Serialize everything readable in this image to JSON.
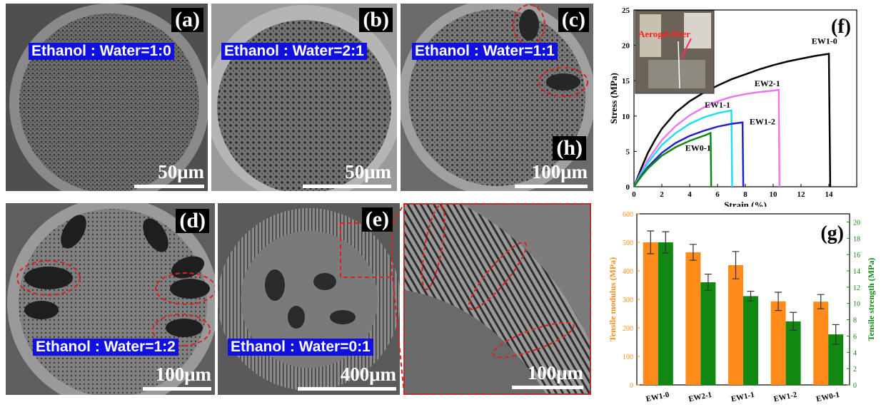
{
  "panels": {
    "a": {
      "letter": "(a)",
      "ratio": "Ethanol : Water=1:0",
      "scale": "50μm"
    },
    "b": {
      "letter": "(b)",
      "ratio": "Ethanol : Water=2:1",
      "scale": "50μm"
    },
    "c": {
      "letter": "(c)",
      "ratio": "Ethanol : Water=1:1",
      "scale": "100μm",
      "sub": "(h)"
    },
    "d": {
      "letter": "(d)",
      "ratio": "Ethanol : Water=1:2",
      "scale": "100μm"
    },
    "e": {
      "letter": "(e)",
      "ratio": "Ethanol : Water=0:1",
      "scale": "400μm"
    },
    "zoom": {
      "scale": "100μm"
    },
    "f": {
      "letter": "(f)",
      "inset_label": "Aerogel fiber"
    },
    "g": {
      "letter": "(g)"
    }
  },
  "colors": {
    "stress_EW1-0": "#000000",
    "stress_EW2-1": "#ee77ee",
    "stress_EW1-1": "#22ddee",
    "stress_EW1-2": "#2222cc",
    "stress_EW0-1": "#118811",
    "modulus": "#ff8c1a",
    "strength": "#118811",
    "annotation": "#e02020"
  },
  "chart_data": [
    {
      "type": "line",
      "panel": "(f)",
      "xlabel": "Strain (%)",
      "ylabel": "Stress (MPa)",
      "xlim": [
        0,
        16
      ],
      "ylim": [
        0,
        25
      ],
      "xticks": [
        0,
        2,
        4,
        6,
        8,
        10,
        12,
        14
      ],
      "yticks": [
        0,
        5,
        10,
        15,
        20,
        25
      ],
      "series": [
        {
          "name": "EW1-0",
          "x": [
            0,
            0.5,
            1,
            1.5,
            2,
            3,
            4,
            5,
            6,
            7,
            8,
            9,
            10,
            11,
            12,
            13,
            14,
            14.1
          ],
          "y": [
            0,
            2.5,
            4.8,
            6.6,
            8.2,
            10.5,
            12.1,
            13.3,
            14.3,
            15.2,
            15.9,
            16.6,
            17.2,
            17.7,
            18.1,
            18.5,
            18.8,
            0
          ]
        },
        {
          "name": "EW2-1",
          "x": [
            0,
            0.5,
            1,
            2,
            3,
            4,
            5,
            6,
            7,
            8,
            9,
            10,
            10.4,
            10.45
          ],
          "y": [
            0,
            2.0,
            3.8,
            6.6,
            8.6,
            10.1,
            11.2,
            12.1,
            12.7,
            13.1,
            13.4,
            13.6,
            13.7,
            0
          ]
        },
        {
          "name": "EW1-1",
          "x": [
            0,
            0.5,
            1,
            2,
            3,
            4,
            5,
            6,
            7,
            7.05
          ],
          "y": [
            0,
            1.8,
            3.4,
            5.9,
            7.6,
            8.9,
            9.8,
            10.4,
            10.8,
            0
          ]
        },
        {
          "name": "EW1-2",
          "x": [
            0,
            0.5,
            1,
            2,
            3,
            4,
            5,
            6,
            7,
            7.8,
            7.85
          ],
          "y": [
            0,
            1.5,
            2.8,
            4.8,
            6.2,
            7.2,
            7.9,
            8.5,
            8.9,
            9.1,
            0
          ]
        },
        {
          "name": "EW0-1",
          "x": [
            0,
            0.5,
            1,
            2,
            3,
            4,
            5,
            5.5,
            5.55
          ],
          "y": [
            0,
            1.4,
            2.6,
            4.4,
            5.6,
            6.5,
            7.2,
            7.6,
            0
          ]
        }
      ]
    },
    {
      "type": "bar",
      "panel": "(g)",
      "categories": [
        "EW1-0",
        "EW2-1",
        "EW1-1",
        "EW1-2",
        "EW0-1"
      ],
      "ylabel": "Tensile modulus (MPa)",
      "y2label": "Tensile strength (MPa)",
      "ylim": [
        0,
        600
      ],
      "y2lim": [
        0,
        21
      ],
      "yticks": [
        0,
        100,
        200,
        300,
        400,
        500,
        600
      ],
      "y2ticks": [
        0,
        2,
        4,
        6,
        8,
        10,
        12,
        14,
        16,
        18,
        20
      ],
      "series": [
        {
          "name": "Tensile modulus",
          "axis": "left",
          "values": [
            500,
            465,
            420,
            293,
            292
          ],
          "errors": [
            40,
            28,
            48,
            32,
            25
          ]
        },
        {
          "name": "Tensile strength",
          "axis": "right",
          "values": [
            17.5,
            12.6,
            10.9,
            7.8,
            6.2
          ],
          "errors": [
            1.3,
            1.0,
            0.6,
            1.1,
            1.2
          ]
        }
      ]
    }
  ]
}
